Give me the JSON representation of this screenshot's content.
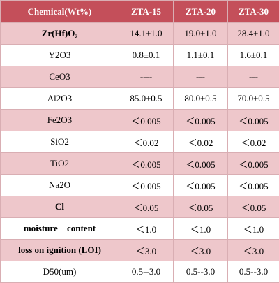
{
  "table": {
    "headers": [
      "Chemical(Wt%)",
      "ZTA-15",
      "ZTA-20",
      "ZTA-30"
    ],
    "rows": [
      {
        "label": "Zr(Hf)O₂",
        "values": [
          "14.1±1.0",
          "19.0±1.0",
          "28.4±1.0"
        ]
      },
      {
        "label": "Y2O3",
        "values": [
          "0.8±0.1",
          "1.1±0.1",
          "1.6±0.1"
        ]
      },
      {
        "label": "CeO3",
        "values": [
          "----",
          "---",
          "---"
        ]
      },
      {
        "label": "Al2O3",
        "values": [
          "85.0±0.5",
          "80.0±0.5",
          "70.0±0.5"
        ]
      },
      {
        "label": "Fe2O3",
        "values": [
          "＜0.005",
          "＜0.005",
          "＜0.005"
        ]
      },
      {
        "label": "SiO2",
        "values": [
          "＜0.02",
          "＜0.02",
          "＜0.02"
        ]
      },
      {
        "label": "TiO2",
        "values": [
          "＜0.005",
          "＜0.005",
          "＜0.005"
        ]
      },
      {
        "label": "Na2O",
        "values": [
          "＜0.005",
          "＜0.005",
          "＜0.005"
        ]
      },
      {
        "label": "Cl",
        "values": [
          "＜0.05",
          "＜0.05",
          "＜0.05"
        ]
      },
      {
        "label": "moisture content",
        "values": [
          "＜1.0",
          "＜1.0",
          "＜1.0"
        ]
      },
      {
        "label": "loss on ignition (LOI)",
        "values": [
          "＜3.0",
          "＜3.0",
          "＜3.0"
        ]
      },
      {
        "label": "D50(um)",
        "values": [
          "0.5--3.0",
          "0.5--3.0",
          "0.5--3.0"
        ]
      }
    ]
  },
  "colors": {
    "header_bg": "#c44f5a",
    "row_pink": "#eec7cb",
    "row_white": "#ffffff",
    "border": "#d9aeb3"
  }
}
